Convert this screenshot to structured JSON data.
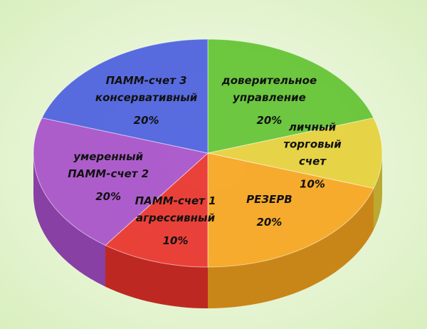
{
  "chart_data": {
    "type": "pie",
    "categories": [
      [
        "доверительное",
        "управление"
      ],
      [
        "личный",
        "торговый",
        "счет"
      ],
      [
        "РЕЗЕРВ"
      ],
      [
        "ПАММ-счет 1",
        "агрессивный"
      ],
      [
        "умеренный",
        "ПАММ-счет 2"
      ],
      [
        "ПАММ-счет 3",
        "консервативный"
      ]
    ],
    "values": [
      20,
      10,
      20,
      10,
      20,
      20
    ],
    "value_labels": [
      "20%",
      "10%",
      "20%",
      "10%",
      "20%",
      "20%"
    ],
    "colors": [
      "#62c232",
      "#e6cf3a",
      "#f6a41e",
      "#e8312a",
      "#a74fc9",
      "#4b5ede"
    ]
  }
}
